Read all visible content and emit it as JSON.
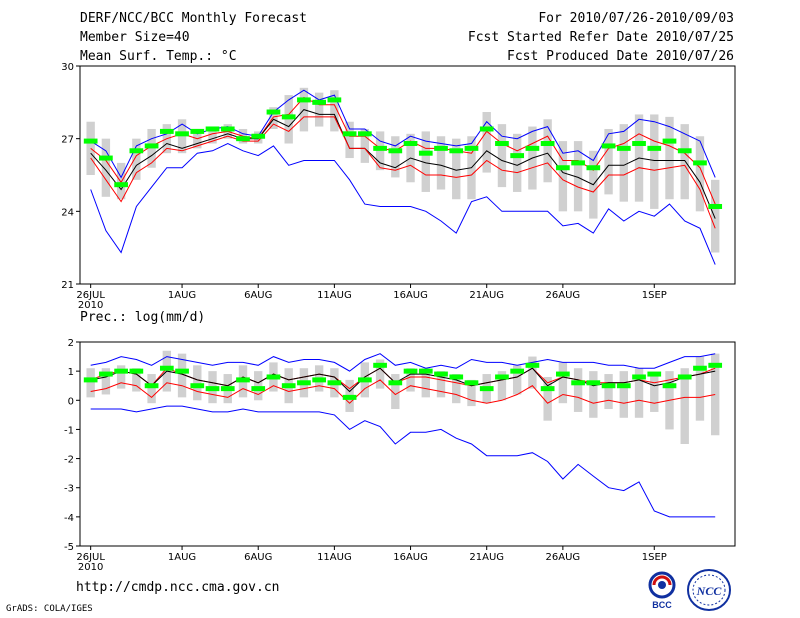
{
  "header": {
    "title": "DERF/NCC/BCC Monthly Forecast",
    "member_size": "Member Size=40",
    "variable": "Mean Surf. Temp.: °C",
    "forecast_period": "For 2010/07/26-2010/09/03",
    "started_refer": "Fcst Started Refer Date 2010/07/25",
    "produced": "Fcst Produced Date 2010/07/26"
  },
  "footer": {
    "url": "http://cmdp.ncc.cma.gov.cn",
    "grads_credit": "GrADS: COLA/IGES",
    "logo_left_text": "BCC",
    "logo_right_text": "NCC"
  },
  "colors": {
    "envelope": "#0000ff",
    "spread": "#ff0000",
    "mean": "#000000",
    "median": "#00ff00",
    "box": "#d0d0d0"
  },
  "chart_data": [
    {
      "type": "line",
      "title": "Mean Surf. Temp.: °C",
      "ylim": [
        21,
        30
      ],
      "yticks": [
        21,
        24,
        27,
        30
      ],
      "x_days": 40,
      "x_ticks": [
        {
          "day": 0,
          "label": "26JUL",
          "sub": "2010"
        },
        {
          "day": 6,
          "label": "1AUG"
        },
        {
          "day": 11,
          "label": "6AUG"
        },
        {
          "day": 16,
          "label": "11AUG"
        },
        {
          "day": 21,
          "label": "16AUG"
        },
        {
          "day": 26,
          "label": "21AUG"
        },
        {
          "day": 31,
          "label": "26AUG"
        },
        {
          "day": 37,
          "label": "1SEP"
        }
      ],
      "series": [
        {
          "name": "max",
          "color": "#0000ff",
          "values": [
            26.9,
            26.5,
            25.4,
            26.7,
            27.0,
            27.2,
            27.6,
            27.2,
            27.4,
            27.5,
            27.2,
            27.1,
            28.1,
            28.6,
            29.0,
            28.6,
            28.8,
            27.4,
            27.4,
            26.9,
            26.7,
            27.1,
            26.9,
            26.8,
            26.7,
            26.8,
            27.7,
            27.1,
            27.0,
            27.3,
            27.5,
            26.4,
            26.5,
            26.1,
            27.2,
            27.3,
            27.8,
            27.7,
            27.5,
            27.2,
            26.9,
            25.4
          ]
        },
        {
          "name": "upper",
          "color": "#ff0000",
          "values": [
            26.6,
            26.1,
            25.2,
            26.3,
            26.7,
            27.0,
            27.2,
            27.0,
            27.2,
            27.3,
            27.1,
            27.0,
            27.9,
            28.0,
            28.7,
            28.4,
            28.4,
            27.1,
            27.1,
            26.6,
            26.5,
            26.9,
            26.6,
            26.6,
            26.5,
            26.4,
            27.3,
            26.8,
            26.5,
            26.8,
            27.1,
            26.1,
            26.1,
            25.7,
            26.6,
            26.8,
            27.2,
            26.9,
            26.7,
            26.4,
            25.8,
            24.3
          ]
        },
        {
          "name": "mean",
          "color": "#000000",
          "values": [
            26.4,
            25.7,
            24.9,
            25.9,
            26.3,
            26.8,
            26.6,
            26.8,
            27.0,
            27.2,
            27.0,
            27.0,
            27.8,
            27.5,
            28.2,
            28.0,
            28.0,
            26.6,
            26.6,
            26.0,
            25.8,
            26.2,
            26.0,
            25.9,
            25.7,
            25.8,
            26.5,
            26.1,
            25.9,
            26.2,
            26.4,
            25.6,
            25.4,
            25.1,
            25.9,
            25.9,
            26.2,
            26.1,
            26.1,
            26.1,
            25.2,
            23.7
          ]
        },
        {
          "name": "lower",
          "color": "#ff0000",
          "values": [
            26.2,
            25.3,
            24.4,
            25.6,
            26.0,
            26.6,
            26.5,
            26.7,
            26.9,
            27.1,
            26.9,
            26.9,
            27.6,
            27.3,
            27.9,
            27.9,
            27.9,
            26.6,
            26.6,
            25.8,
            25.7,
            25.9,
            25.5,
            25.5,
            25.4,
            25.5,
            26.1,
            25.7,
            25.6,
            25.8,
            26.0,
            25.3,
            25.0,
            24.8,
            25.5,
            25.5,
            25.8,
            25.7,
            25.8,
            25.9,
            24.9,
            23.3
          ]
        },
        {
          "name": "min",
          "color": "#0000ff",
          "values": [
            24.9,
            23.2,
            22.3,
            24.2,
            25.0,
            25.8,
            25.8,
            26.4,
            26.5,
            26.8,
            26.5,
            26.3,
            26.7,
            25.9,
            26.1,
            26.1,
            26.1,
            25.3,
            24.3,
            24.2,
            24.2,
            24.2,
            24.0,
            23.6,
            23.1,
            24.4,
            24.6,
            24.0,
            24.0,
            24.0,
            24.0,
            23.4,
            23.5,
            23.1,
            24.1,
            23.6,
            24.0,
            23.8,
            24.3,
            23.6,
            23.3,
            21.8
          ]
        }
      ],
      "boxes": {
        "low": [
          25.5,
          24.6,
          24.5,
          25.3,
          25.8,
          26.4,
          26.4,
          26.6,
          26.8,
          27.0,
          26.8,
          26.8,
          27.4,
          26.8,
          27.3,
          27.5,
          27.3,
          26.2,
          26.0,
          25.7,
          25.4,
          25.2,
          24.8,
          24.9,
          24.5,
          24.5,
          25.6,
          25.0,
          24.8,
          24.9,
          25.2,
          24.0,
          24.0,
          23.7,
          24.7,
          24.4,
          24.4,
          24.1,
          24.5,
          24.5,
          24.0,
          22.3
        ],
        "high": [
          27.7,
          27.0,
          26.0,
          27.0,
          27.4,
          27.6,
          27.8,
          27.4,
          27.5,
          27.6,
          27.4,
          27.3,
          28.3,
          28.8,
          29.1,
          28.9,
          29.0,
          27.7,
          27.4,
          27.3,
          27.1,
          27.2,
          27.3,
          27.1,
          27.0,
          27.1,
          28.1,
          27.6,
          27.2,
          27.5,
          27.8,
          26.9,
          26.9,
          26.5,
          27.4,
          27.6,
          28.0,
          28.0,
          27.9,
          27.6,
          27.1,
          25.3
        ]
      },
      "median": [
        26.9,
        26.2,
        25.1,
        26.5,
        26.7,
        27.3,
        27.2,
        27.3,
        27.4,
        27.4,
        27.0,
        27.1,
        28.1,
        27.9,
        28.6,
        28.5,
        28.6,
        27.2,
        27.2,
        26.6,
        26.5,
        26.8,
        26.4,
        26.6,
        26.5,
        26.6,
        27.4,
        26.8,
        26.3,
        26.6,
        26.8,
        25.8,
        26.0,
        25.8,
        26.7,
        26.6,
        26.8,
        26.6,
        26.9,
        26.5,
        26.0,
        24.2
      ]
    },
    {
      "type": "line",
      "title": "Prec.: log(mm/d)",
      "ylim": [
        -5,
        2
      ],
      "yticks": [
        -5,
        -4,
        -3,
        -2,
        -1,
        0,
        1,
        2
      ],
      "x_days": 40,
      "x_ticks": [
        {
          "day": 0,
          "label": "26JUL",
          "sub": "2010"
        },
        {
          "day": 6,
          "label": "1AUG"
        },
        {
          "day": 11,
          "label": "6AUG"
        },
        {
          "day": 16,
          "label": "11AUG"
        },
        {
          "day": 21,
          "label": "16AUG"
        },
        {
          "day": 26,
          "label": "21AUG"
        },
        {
          "day": 31,
          "label": "26AUG"
        },
        {
          "day": 37,
          "label": "1SEP"
        }
      ],
      "series": [
        {
          "name": "max",
          "color": "#0000ff",
          "values": [
            1.2,
            1.3,
            1.5,
            1.4,
            1.2,
            1.5,
            1.4,
            1.3,
            1.2,
            1.3,
            1.3,
            1.2,
            1.5,
            1.3,
            1.4,
            1.4,
            1.3,
            1.0,
            1.4,
            1.6,
            1.2,
            1.3,
            1.1,
            1.2,
            1.1,
            1.4,
            1.3,
            1.3,
            1.2,
            1.3,
            1.4,
            1.3,
            1.3,
            1.3,
            1.2,
            1.2,
            1.1,
            1.1,
            1.3,
            1.5,
            1.5,
            1.6
          ]
        },
        {
          "name": "upper",
          "color": "#ff0000",
          "values": [
            0.7,
            0.9,
            1.0,
            0.9,
            0.5,
            1.1,
            0.9,
            0.7,
            0.6,
            0.5,
            0.8,
            0.6,
            0.9,
            0.7,
            0.8,
            0.9,
            0.8,
            0.4,
            0.8,
            1.1,
            0.6,
            0.8,
            0.8,
            0.7,
            0.6,
            0.5,
            0.6,
            0.7,
            0.8,
            1.1,
            0.6,
            0.8,
            0.7,
            0.6,
            0.6,
            0.6,
            0.7,
            0.6,
            0.7,
            0.8,
            0.9,
            1.1
          ]
        },
        {
          "name": "mean",
          "color": "#000000",
          "values": [
            0.7,
            0.8,
            1.0,
            0.9,
            0.5,
            1.0,
            0.9,
            0.7,
            0.6,
            0.5,
            0.8,
            0.6,
            0.9,
            0.7,
            0.8,
            0.9,
            0.8,
            0.3,
            0.8,
            1.1,
            0.6,
            0.9,
            0.9,
            0.8,
            0.7,
            0.5,
            0.6,
            0.7,
            0.8,
            1.1,
            0.5,
            0.8,
            0.7,
            0.5,
            0.6,
            0.6,
            0.7,
            0.5,
            0.6,
            0.8,
            0.9,
            1.0
          ]
        },
        {
          "name": "lower",
          "color": "#ff0000",
          "values": [
            0.3,
            0.4,
            0.6,
            0.5,
            0.1,
            0.6,
            0.5,
            0.3,
            0.2,
            0.1,
            0.4,
            0.2,
            0.5,
            0.3,
            0.4,
            0.5,
            0.4,
            -0.1,
            0.4,
            0.7,
            0.2,
            0.5,
            0.4,
            0.3,
            0.2,
            0.0,
            -0.1,
            0.0,
            0.2,
            0.5,
            -0.1,
            0.2,
            0.1,
            -0.1,
            0.0,
            -0.1,
            0.0,
            -0.1,
            0.0,
            0.1,
            0.1,
            0.2
          ]
        },
        {
          "name": "min",
          "color": "#0000ff",
          "values": [
            -0.3,
            -0.3,
            -0.3,
            -0.4,
            -0.3,
            -0.2,
            -0.2,
            -0.3,
            -0.4,
            -0.4,
            -0.3,
            -0.4,
            -0.4,
            -0.4,
            -0.4,
            -0.4,
            -0.5,
            -1.0,
            -0.7,
            -0.9,
            -1.5,
            -1.1,
            -1.1,
            -1.0,
            -1.3,
            -1.5,
            -1.9,
            -1.9,
            -1.9,
            -1.8,
            -2.1,
            -2.7,
            -2.2,
            -2.6,
            -3.0,
            -3.1,
            -2.8,
            -3.8,
            -4.0,
            -4.0,
            -4.0,
            -4.0
          ]
        }
      ],
      "boxes": {
        "low": [
          0.1,
          0.2,
          0.4,
          0.3,
          -0.1,
          0.3,
          0.1,
          0.0,
          -0.1,
          -0.1,
          0.1,
          0.0,
          0.3,
          -0.1,
          0.1,
          0.3,
          0.1,
          -0.4,
          0.1,
          0.4,
          -0.3,
          0.3,
          0.1,
          0.1,
          -0.1,
          -0.2,
          -0.1,
          0.0,
          0.2,
          0.4,
          -0.7,
          -0.1,
          -0.4,
          -0.6,
          -0.3,
          -0.6,
          -0.6,
          -0.4,
          -1.0,
          -1.5,
          -0.7,
          -1.2
        ],
        "high": [
          1.1,
          1.1,
          1.2,
          1.1,
          0.9,
          1.7,
          1.6,
          1.2,
          1.0,
          0.9,
          1.2,
          1.0,
          1.3,
          1.1,
          1.1,
          1.2,
          1.1,
          0.7,
          1.3,
          1.4,
          0.9,
          1.1,
          1.1,
          1.0,
          0.9,
          0.7,
          0.9,
          1.0,
          1.2,
          1.5,
          0.8,
          1.3,
          1.1,
          1.0,
          0.9,
          1.0,
          1.1,
          0.9,
          1.0,
          1.1,
          1.5,
          1.6
        ]
      },
      "median": [
        0.7,
        0.9,
        1.0,
        1.0,
        0.5,
        1.1,
        1.0,
        0.5,
        0.4,
        0.4,
        0.7,
        0.4,
        0.8,
        0.5,
        0.6,
        0.7,
        0.6,
        0.1,
        0.7,
        1.2,
        0.6,
        1.0,
        1.0,
        0.9,
        0.8,
        0.6,
        0.4,
        0.8,
        1.0,
        1.2,
        0.4,
        0.9,
        0.6,
        0.6,
        0.5,
        0.5,
        0.8,
        0.9,
        0.5,
        0.8,
        1.1,
        1.2
      ]
    }
  ]
}
